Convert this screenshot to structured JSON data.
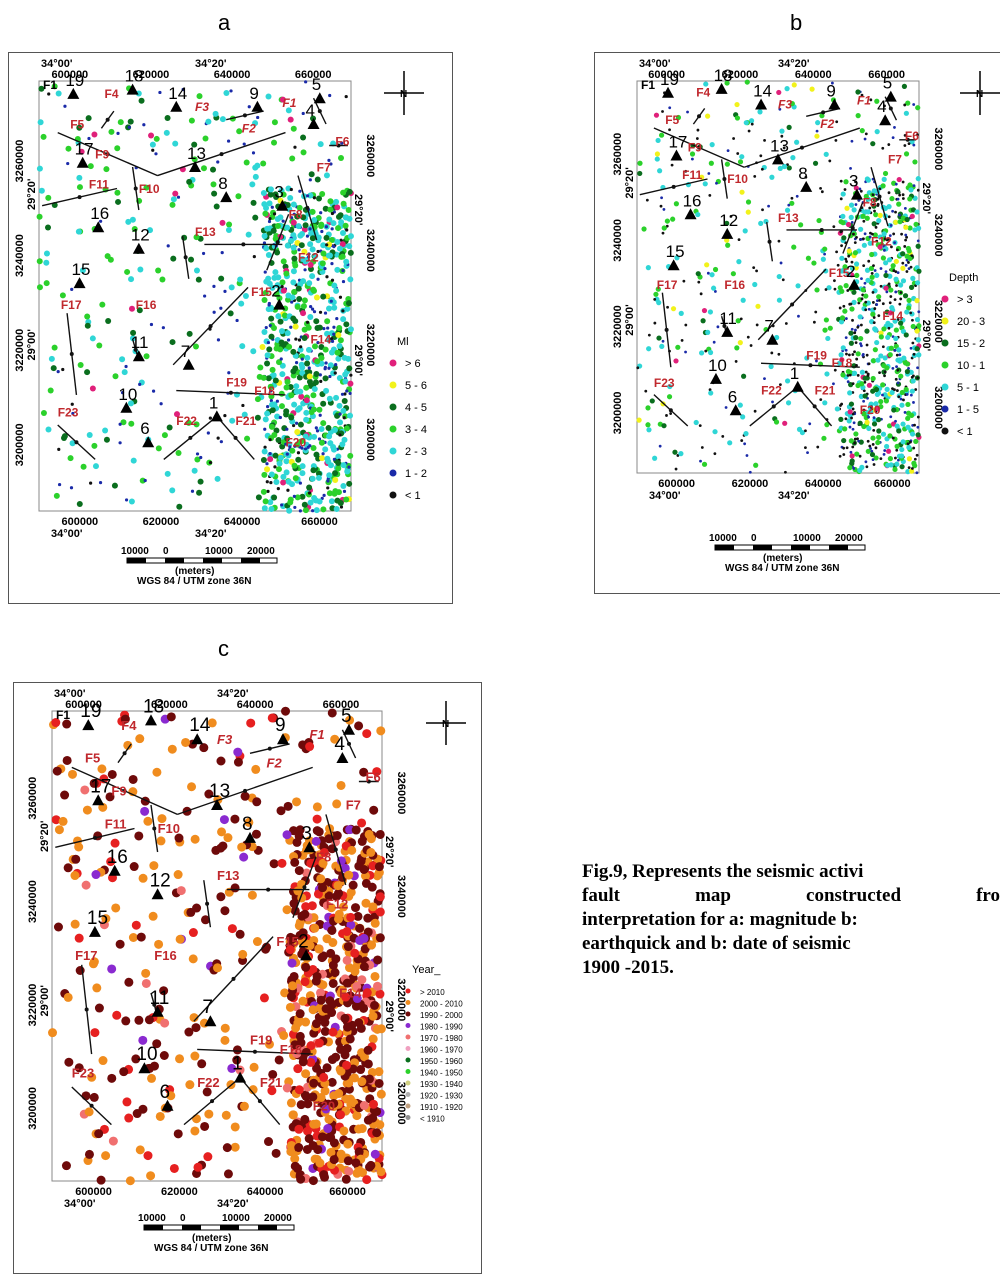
{
  "panels": [
    {
      "letter": "a",
      "legend_title": "Ml",
      "legend": [
        {
          "label": "> 6",
          "color": "#e0207a"
        },
        {
          "label": "5 - 6",
          "color": "#f2f21a"
        },
        {
          "label": "4 - 5",
          "color": "#0a6e1e"
        },
        {
          "label": "3 - 4",
          "color": "#2bd12b"
        },
        {
          "label": "2 - 3",
          "color": "#2fd6d6"
        },
        {
          "label": "1 - 2",
          "color": "#1a2aa8"
        },
        {
          "label": "< 1",
          "color": "#111111"
        }
      ]
    },
    {
      "letter": "b",
      "legend_title": "Depth",
      "legend": [
        {
          "label": "> 3",
          "color": "#e0207a"
        },
        {
          "label": "20 - 3",
          "color": "#f2f21a"
        },
        {
          "label": "15 - 2",
          "color": "#0a6e1e"
        },
        {
          "label": "10 - 1",
          "color": "#2bd12b"
        },
        {
          "label": "5 - 1",
          "color": "#2fd6d6"
        },
        {
          "label": "1 - 5",
          "color": "#1a2aa8"
        },
        {
          "label": "< 1",
          "color": "#111111"
        }
      ]
    },
    {
      "letter": "c",
      "legend_title": "Year_",
      "legend": [
        {
          "label": "> 2010",
          "color": "#e62020"
        },
        {
          "label": "2000 - 2010",
          "color": "#f08c1e"
        },
        {
          "label": "1990 - 2000",
          "color": "#6e0a0a"
        },
        {
          "label": "1980 - 1990",
          "color": "#8a2ad0"
        },
        {
          "label": "1970 - 1980",
          "color": "#f07070"
        },
        {
          "label": "1960 - 1970",
          "color": "#f0a0c0"
        },
        {
          "label": "1950 - 1960",
          "color": "#0a6e1e"
        },
        {
          "label": "1940 - 1950",
          "color": "#2bd12b"
        },
        {
          "label": "1930 - 1940",
          "color": "#d0d080"
        },
        {
          "label": "1920 - 1930",
          "color": "#b0b0b0"
        },
        {
          "label": "1910 - 1920",
          "color": "#c0a080"
        },
        {
          "label": "< 1910",
          "color": "#909090"
        }
      ]
    }
  ],
  "map": {
    "top_lon": "34°00'",
    "top_lon2": "34°20'",
    "easting": [
      "600000",
      "620000",
      "640000",
      "660000"
    ],
    "bottom_lon": "34°00'",
    "bottom_lon2": "34°20'",
    "left_lat1": "29°20'",
    "left_lat2": "29°00'",
    "northing_left": [
      "3260000",
      "3240000",
      "3220000",
      "3200000"
    ],
    "right_lat1": "29°20'",
    "right_lat2": "29°00'",
    "northing_right": [
      "3260000",
      "3240000",
      "3220000",
      "3200000"
    ],
    "scale_labels": [
      "10000",
      "0",
      "10000",
      "20000"
    ],
    "scale_unit": "(meters)",
    "crs": "WGS 84 / UTM zone 36N",
    "stations": [
      "1",
      "2",
      "3",
      "4",
      "5",
      "6",
      "7",
      "8",
      "9",
      "10",
      "11",
      "12",
      "13",
      "14",
      "15",
      "16",
      "17",
      "18",
      "19"
    ],
    "faults": [
      "F1",
      "F2",
      "F3",
      "F4",
      "F5",
      "F6",
      "F7",
      "F8",
      "F9",
      "F10",
      "F11",
      "F12",
      "F13",
      "F14",
      "F15",
      "F16",
      "F17",
      "F18",
      "F19",
      "F20",
      "F21",
      "F22",
      "F23"
    ]
  },
  "caption": {
    "line1": "Fig.9,  Represents the seismic activi",
    "line2_words": [
      "fault",
      "map",
      "constructed",
      "fro"
    ],
    "line3": "interpretation for a: magnitude  b:",
    "line4": "earthquick and b: date of seismic",
    "line5": "1900 -2015."
  }
}
